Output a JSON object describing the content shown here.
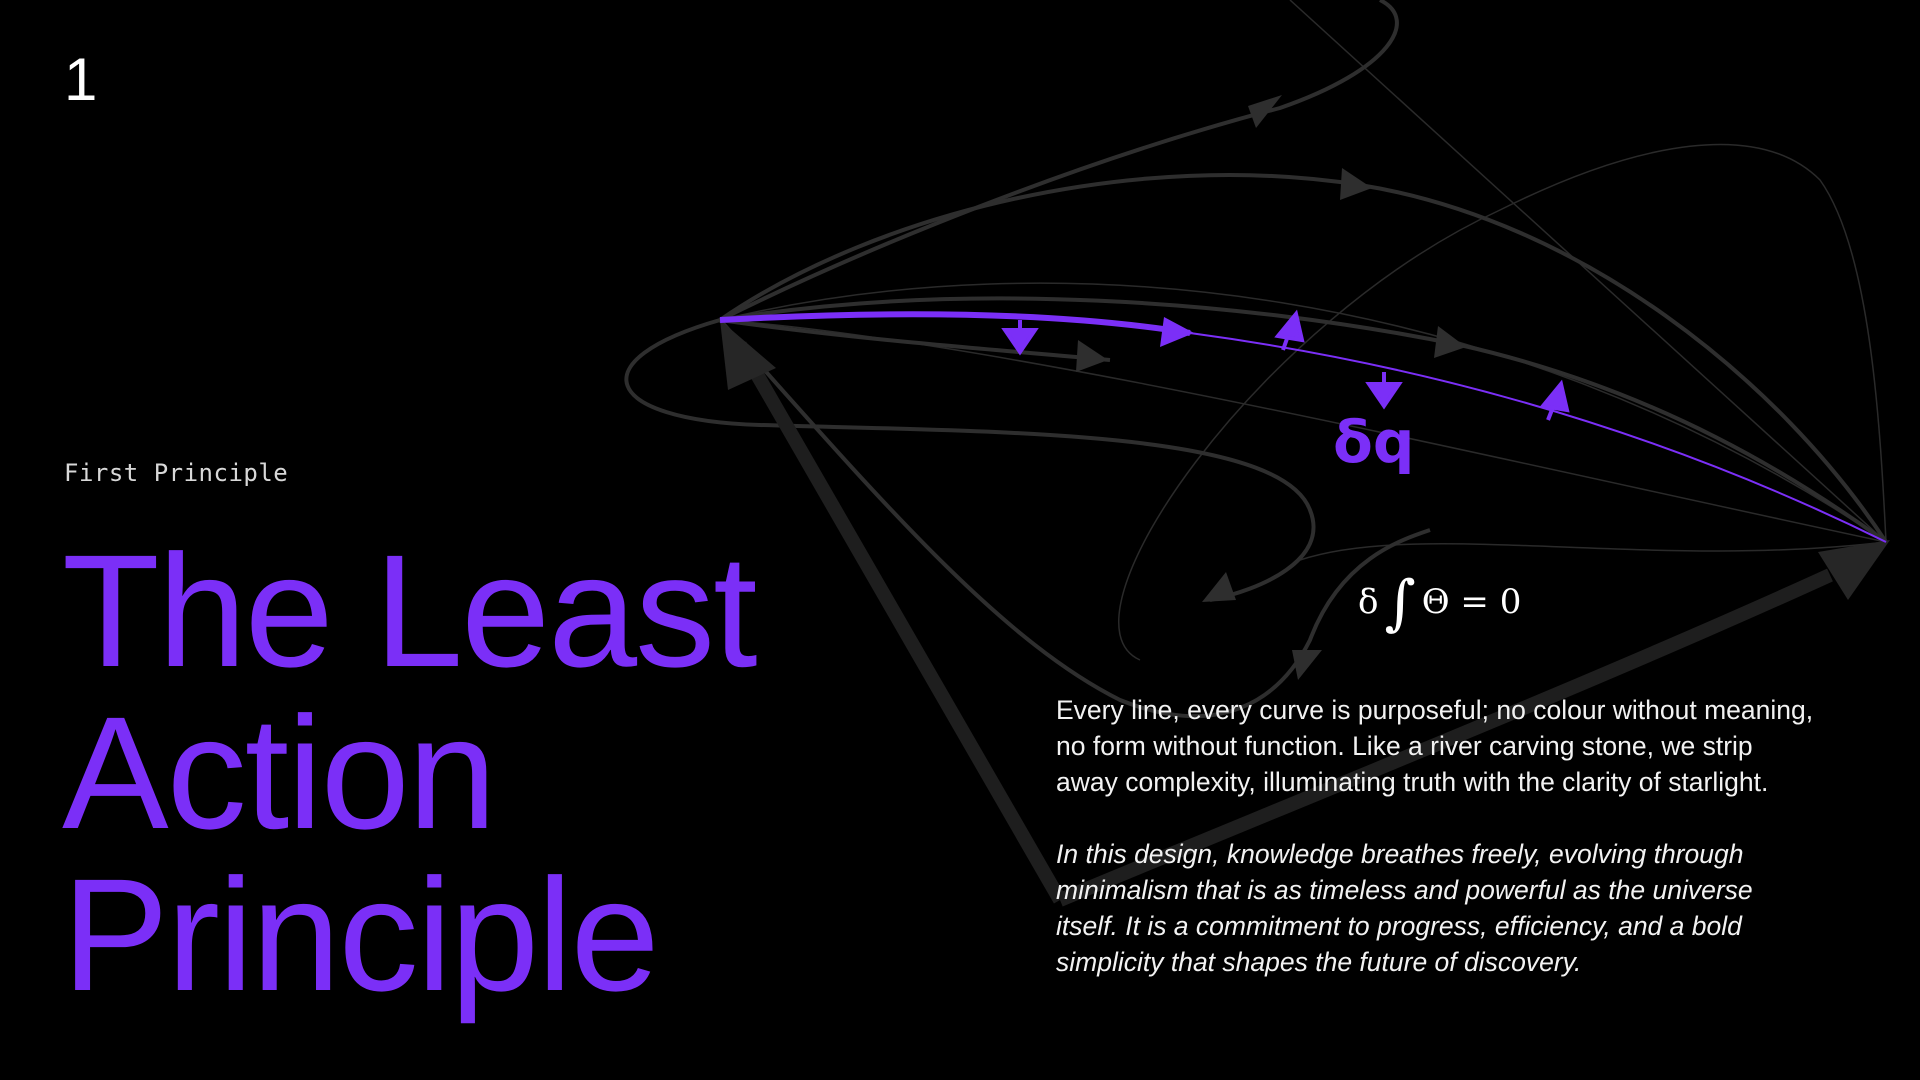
{
  "slide": {
    "number": "1",
    "eyebrow": "First Principle",
    "title_lines": [
      "The Least",
      "Action",
      "Principle"
    ],
    "variation_label": "δq",
    "formula": {
      "delta": "δ",
      "integral": "∫",
      "expression": "Θ = 0"
    },
    "paragraphs": [
      "Every line, every curve is purposeful; no colour without meaning, no form without function. Like a river carving stone, we strip away complexity, illuminating truth with the clarity of starlight.",
      "In this design, knowledge breathes freely, evolving through minimalism that is as timeless and powerful as the universe itself. It is a commitment to progress, efficiency, and a bold simplicity that shapes the future of discovery."
    ]
  },
  "colors": {
    "background": "#000000",
    "accent": "#7b2ff7",
    "path_gray": "#2c2c2c",
    "faint_gray": "#3a3a3a",
    "text": "#ffffff"
  },
  "icons": [
    "arrowhead-icon"
  ]
}
